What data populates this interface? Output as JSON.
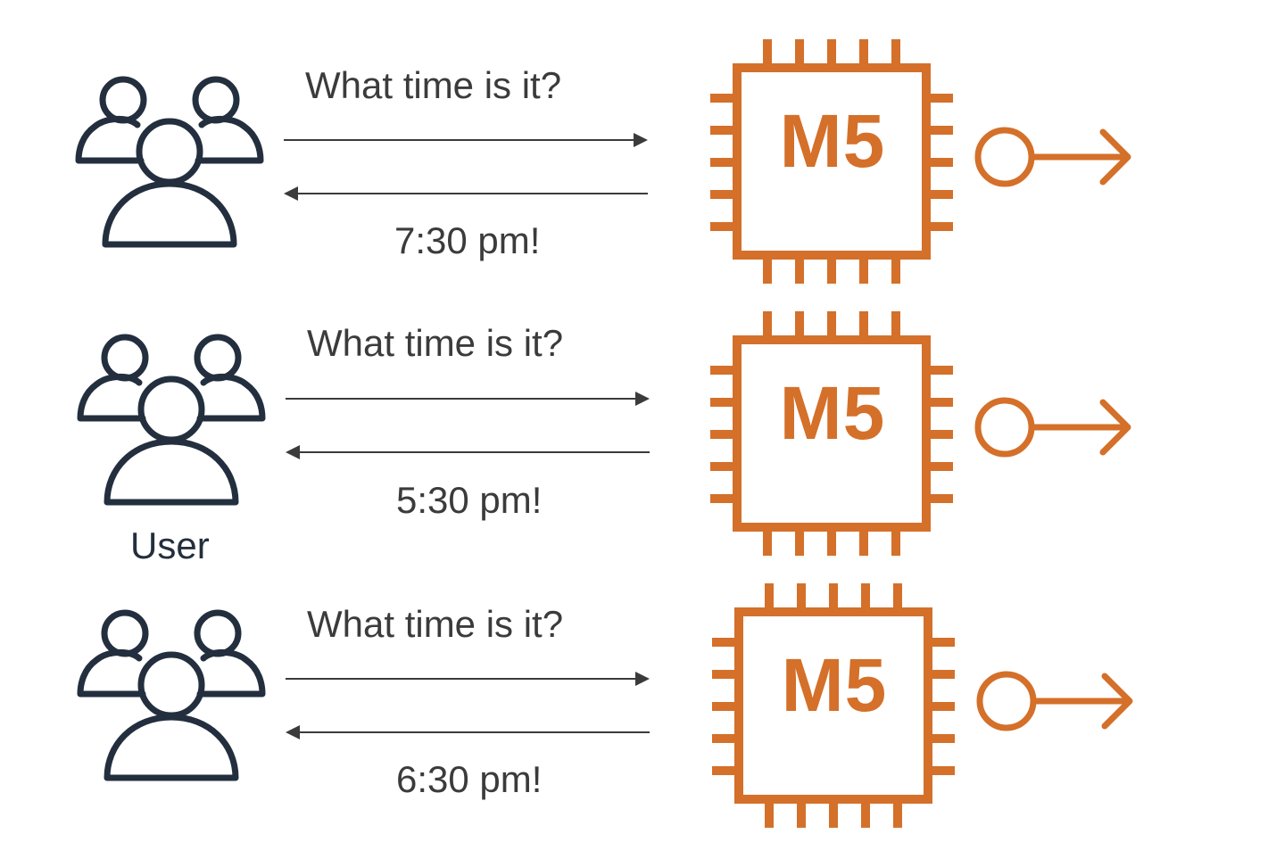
{
  "colors": {
    "user_icon": "#232f3e",
    "instance": "#d4702a",
    "arrow": "#3b3b3b",
    "text": "#3b3b3b"
  },
  "caption": "User",
  "rows": [
    {
      "question": "What time is it?",
      "answer": "7:30 pm!",
      "instance_label": "M5"
    },
    {
      "question": "What time is it?",
      "answer": "5:30 pm!",
      "instance_label": "M5"
    },
    {
      "question": "What time is it?",
      "answer": "6:30 pm!",
      "instance_label": "M5"
    }
  ],
  "icons": [
    "users-group-icon",
    "ec2-instance-chip-icon",
    "connector-arrow-icon"
  ]
}
